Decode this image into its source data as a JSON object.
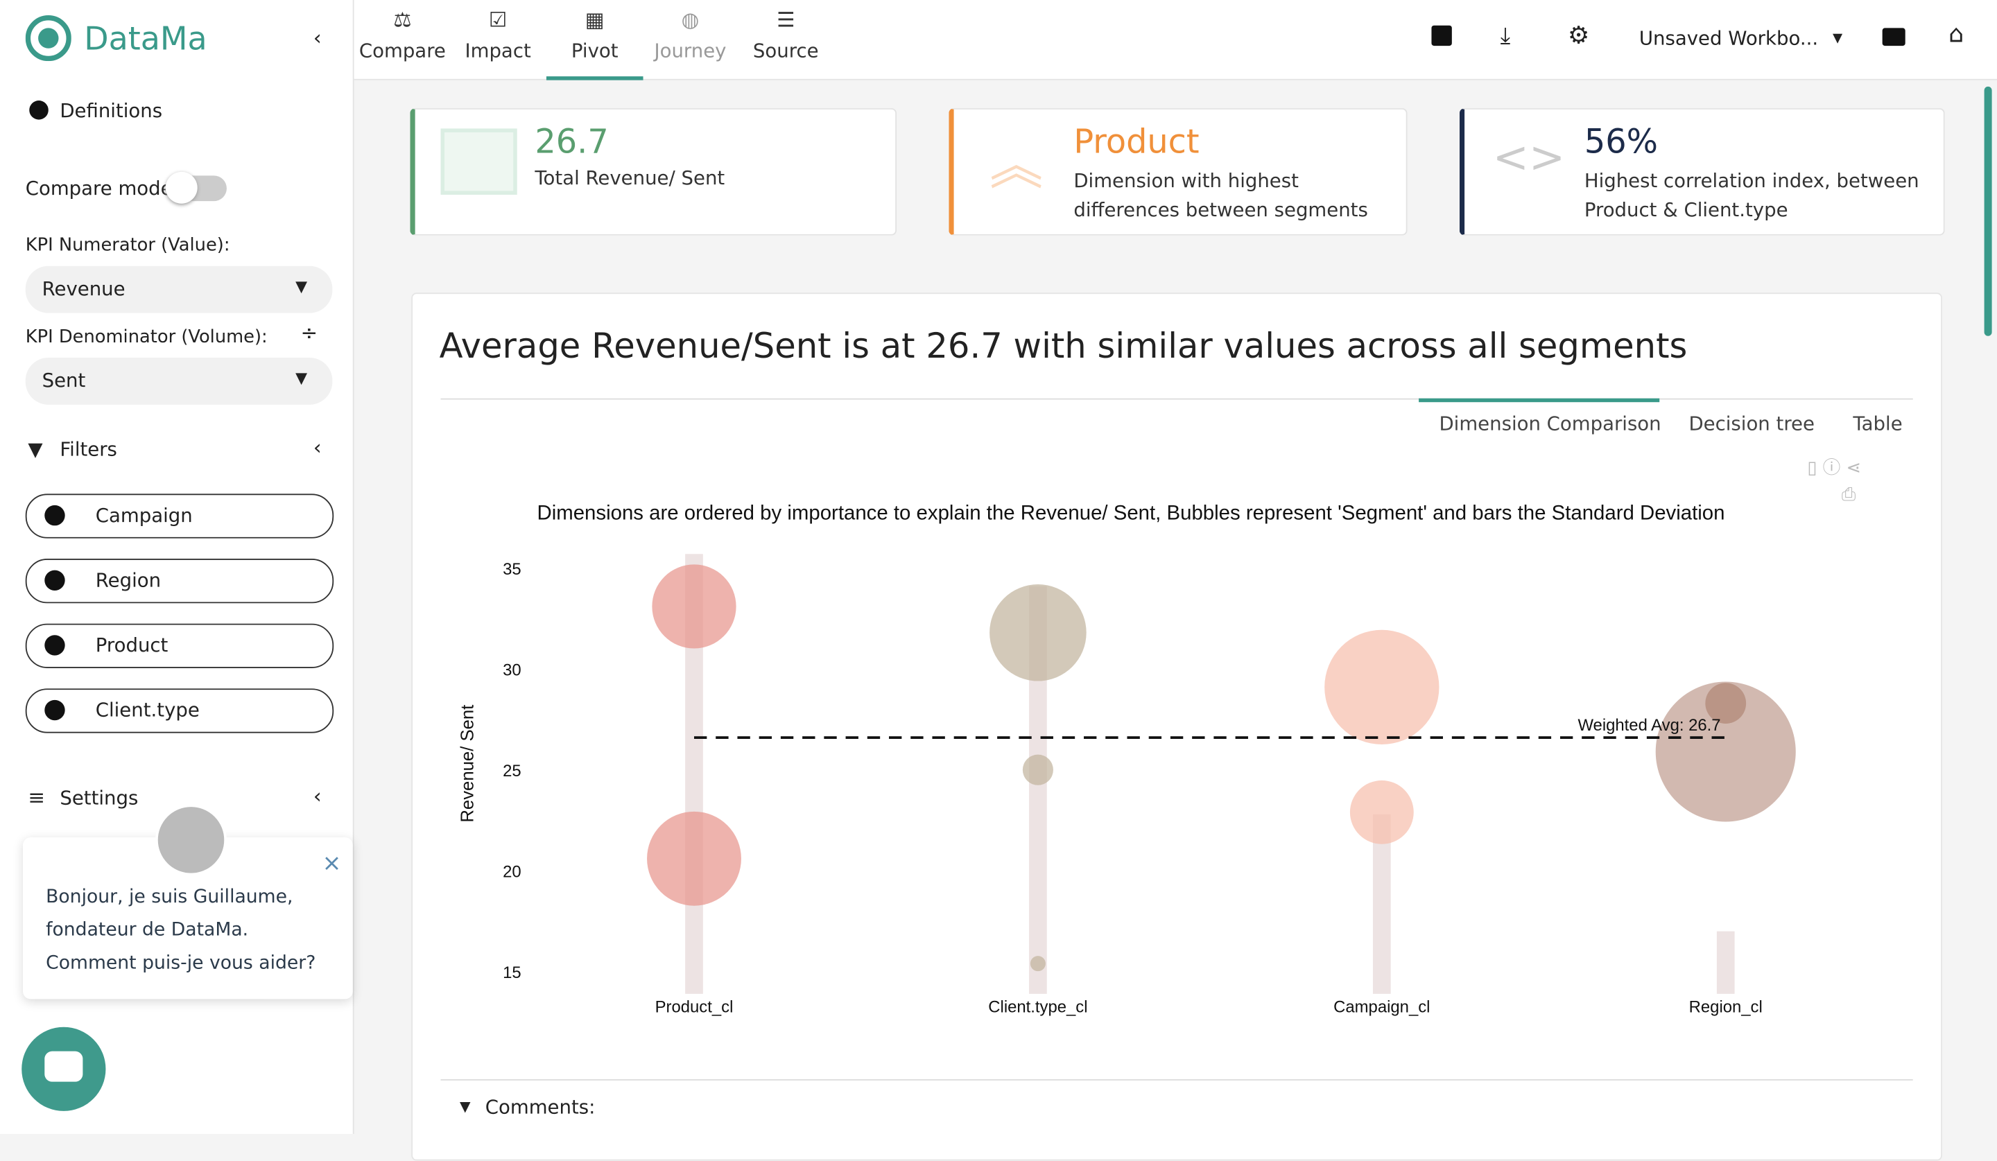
{
  "sidebar": {
    "brand": "DataMa",
    "definitions": "Definitions",
    "compare_mode": "Compare mode",
    "kpi_numerator_label": "KPI Numerator (Value):",
    "kpi_numerator": "Revenue",
    "kpi_denominator_label": "KPI Denominator (Volume):",
    "kpi_denominator": "Sent",
    "filters": "Filters",
    "filter_items": [
      "Campaign",
      "Region",
      "Product",
      "Client.type"
    ],
    "settings": "Settings",
    "chat_message": "Bonjour, je suis Guillaume, fondateur de DataMa. Comment puis-je vous aider?"
  },
  "nav": {
    "tabs": [
      "Compare",
      "Impact",
      "Pivot",
      "Journey",
      "Source"
    ],
    "workbook": "Unsaved Workbo..."
  },
  "kpi_cards": [
    {
      "value": "26.7",
      "label": "Total Revenue/ Sent"
    },
    {
      "value": "Product",
      "label": "Dimension with highest differences between segments"
    },
    {
      "value": "56%",
      "label": "Highest correlation index, between Product & Client.type"
    }
  ],
  "panel": {
    "headline": "Average Revenue/Sent is at 26.7 with similar values across all segments",
    "tabs": [
      "Dimension Comparison",
      "Decision tree",
      "Table"
    ],
    "comments": "Comments:"
  },
  "chart_data": {
    "type": "bubble",
    "title": "Dimensions are ordered by importance to explain the Revenue/ Sent, Bubbles represent 'Segment' and bars the Standard Deviation",
    "y_label": "Revenue/ Sent",
    "categories": [
      "Product_cl",
      "Client.type_cl",
      "Campaign_cl",
      "Region_cl"
    ],
    "bars": {
      "values": [
        35.8,
        34.2,
        22.9,
        17.1
      ],
      "color": "#ede3e3"
    },
    "bubbles": [
      {
        "x": "Product_cl",
        "y": 33.2,
        "size": 33,
        "color": "#e8958e"
      },
      {
        "x": "Product_cl",
        "y": 20.7,
        "size": 37,
        "color": "#e8958e"
      },
      {
        "x": "Client.type_cl",
        "y": 31.9,
        "size": 38,
        "color": "#c2b49e"
      },
      {
        "x": "Client.type_cl",
        "y": 25.1,
        "size": 12,
        "color": "#c2b49e"
      },
      {
        "x": "Client.type_cl",
        "y": 15.5,
        "size": 6,
        "color": "#c2b49e"
      },
      {
        "x": "Campaign_cl",
        "y": 29.2,
        "size": 45,
        "color": "#f6bfad"
      },
      {
        "x": "Campaign_cl",
        "y": 23.0,
        "size": 25,
        "color": "#f6bfad"
      },
      {
        "x": "Region_cl",
        "y": 26.0,
        "size": 55,
        "color": "#c09e91"
      },
      {
        "x": "Region_cl",
        "y": 28.4,
        "size": 16,
        "color": "#b08676"
      }
    ],
    "avg_line": {
      "value": 26.7,
      "label": "Weighted Avg: 26.7"
    },
    "ylim": [
      14,
      35.8
    ],
    "yticks": [
      15,
      20,
      25,
      30,
      35
    ]
  }
}
